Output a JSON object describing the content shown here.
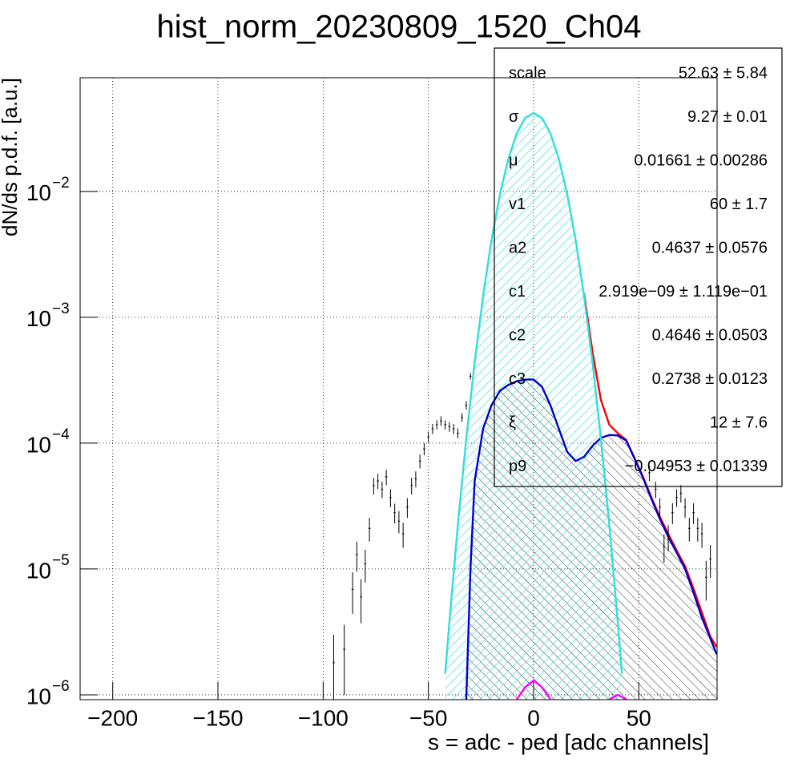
{
  "chart_data": {
    "type": "errorbar",
    "title": "hist_norm_20230809_1520_Ch04",
    "x_label": "s = adc - ped [adc channels]",
    "y_label": "dN/ds p.d.f. [a.u.]",
    "xlim": [
      -215.5,
      87.2
    ],
    "ylim": [
      9.15e-07,
      0.08
    ],
    "log_y": true,
    "grid": true,
    "xticks": [
      {
        "value": -200,
        "label": "−200"
      },
      {
        "value": -150,
        "label": "−150"
      },
      {
        "value": -100,
        "label": "−100"
      },
      {
        "value": -50,
        "label": "−50"
      },
      0,
      50
    ],
    "yticks": [
      {
        "value": 1e-06,
        "label": "10",
        "exponent": "−6"
      },
      {
        "value": 1e-05,
        "label": "10",
        "exponent": "−5"
      },
      {
        "value": 0.0001,
        "label": "10",
        "exponent": "−4"
      },
      {
        "value": 0.001,
        "label": "10",
        "exponent": "−3"
      },
      {
        "value": 0.01,
        "label": "10",
        "exponent": "−2"
      }
    ],
    "series": [
      {
        "kind": "area",
        "color": "#0000cc",
        "fill": "hatch-black",
        "x": [
          -32,
          -30,
          -28,
          -24,
          -20,
          -16,
          -12,
          -8,
          -4,
          0,
          4,
          8,
          12,
          16,
          20,
          24,
          28,
          32,
          36,
          40,
          44,
          48,
          52,
          56,
          60,
          64,
          68,
          72,
          76,
          80,
          84,
          87
        ],
        "values": [
          9.2e-07,
          1e-05,
          5e-05,
          0.00013,
          0.0002,
          0.00026,
          0.00029,
          0.00031,
          0.00032,
          0.00032,
          0.00028,
          0.0002,
          0.00013,
          8.5e-05,
          7.2e-05,
          7.8e-05,
          9.5e-05,
          0.00011,
          0.000116,
          0.000115,
          0.000105,
          7.5e-05,
          5.3e-05,
          3.6e-05,
          2.5e-05,
          1.8e-05,
          1.35e-05,
          1e-05,
          6.5e-06,
          4.1e-06,
          2.8e-06,
          2.1e-06
        ]
      },
      {
        "kind": "area",
        "color": "#33dddd",
        "fill": "hatch-cyan",
        "x": [
          -42,
          -40,
          -36,
          -32,
          -28,
          -24,
          -20,
          -16,
          -12,
          -8,
          -4,
          0,
          4,
          8,
          12,
          16,
          20,
          24,
          28,
          32,
          36,
          40,
          42
        ],
        "values": [
          1.47e-06,
          3.8e-06,
          2.23e-05,
          0.0001085,
          0.000439,
          0.00147,
          0.0041,
          0.00947,
          0.01817,
          0.0289,
          0.0383,
          0.042,
          0.0383,
          0.0289,
          0.01817,
          0.00947,
          0.0041,
          0.00147,
          0.000439,
          0.0001085,
          2.23e-05,
          3.8e-06,
          1.47e-06
        ]
      },
      {
        "kind": "line",
        "color": "#ff0000",
        "x": [
          24,
          28,
          32,
          36,
          40,
          44,
          48,
          52,
          56,
          60,
          64,
          68,
          72,
          76,
          80,
          84,
          87
        ],
        "values": [
          0.00155,
          0.00053,
          0.00022,
          0.00014,
          0.00012,
          0.000106,
          7.6e-05,
          5.4e-05,
          3.7e-05,
          2.6e-05,
          1.9e-05,
          1.4e-05,
          1.05e-05,
          7e-06,
          4.5e-06,
          2.9e-06,
          2.4e-06
        ]
      },
      {
        "kind": "line",
        "color": "#ff00ff",
        "x": [
          -8,
          -4,
          0,
          4,
          8,
          20,
          36,
          40,
          44
        ],
        "values": [
          9.2e-07,
          1.15e-06,
          1.3e-06,
          1.15e-06,
          9.2e-07,
          null,
          9.2e-07,
          1e-06,
          9.2e-07
        ]
      },
      {
        "kind": "points",
        "color": "#000000",
        "x": [
          -95,
          -90,
          -86,
          -84,
          -82,
          -80,
          -78,
          -76,
          -74,
          -72,
          -70,
          -68,
          -66,
          -64,
          -62,
          -60,
          -58,
          -56,
          -54,
          -52,
          -50,
          -48,
          -46,
          -44,
          -42,
          -40,
          -38,
          -36,
          -34,
          -32,
          -30,
          55,
          58,
          60,
          62,
          64,
          66,
          68,
          70,
          72,
          74,
          76,
          78,
          80,
          82,
          84
        ],
        "values": [
          1.8e-06,
          2.3e-06,
          6.9e-06,
          1.3e-05,
          6e-06,
          1.1e-05,
          2.1e-05,
          4.6e-05,
          5e-05,
          4.3e-05,
          5.4e-05,
          3.7e-05,
          2.8e-05,
          2.4e-05,
          1.9e-05,
          3.1e-05,
          4.6e-05,
          5.2e-05,
          7.2e-05,
          9e-05,
          0.000112,
          0.00013,
          0.00014,
          0.00015,
          0.00014,
          0.000135,
          0.00013,
          0.00012,
          0.00016,
          0.0002,
          0.00034,
          5.8e-05,
          4.3e-05,
          3.1e-05,
          1.5e-05,
          1.8e-05,
          2.8e-05,
          3.7e-05,
          4e-05,
          3.1e-05,
          2.1e-05,
          2.8e-05,
          2.1e-05,
          1.9e-05,
          8.6e-06,
          1.2e-05
        ],
        "errors": [
          1.2e-06,
          1.3e-06,
          2.5e-06,
          3.5e-06,
          2.3e-06,
          3.2e-06,
          4.5e-06,
          7e-06,
          7e-06,
          6.5e-06,
          7.5e-06,
          6e-06,
          5e-06,
          4.8e-06,
          4.3e-06,
          5.5e-06,
          7e-06,
          7.5e-06,
          9e-06,
          1e-05,
          1.1e-05,
          1.2e-05,
          1.2e-05,
          1.3e-05,
          1.2e-05,
          1.2e-05,
          1.2e-05,
          1.1e-05,
          1.3e-05,
          1.5e-05,
          2e-05,
          8e-06,
          6.5e-06,
          5.5e-06,
          3.8e-06,
          4.2e-06,
          5.3e-06,
          6e-06,
          6.3e-06,
          5.5e-06,
          4.5e-06,
          5.3e-06,
          4.5e-06,
          4.3e-06,
          3e-06,
          3.5e-06
        ]
      }
    ],
    "stats": {
      "rows": [
        {
          "name": "scale",
          "value": "52.63 ± 5.84"
        },
        {
          "name": "σ",
          "value": "9.27 ± 0.01"
        },
        {
          "name": "μ",
          "value": "0.01661 ± 0.00286"
        },
        {
          "name": "v1",
          "value": "60 ± 1.7"
        },
        {
          "name": "a2",
          "value": "0.4637 ± 0.0576"
        },
        {
          "name": "c1",
          "value": "2.919e−09 ± 1.119e−01"
        },
        {
          "name": "c2",
          "value": "0.4646 ± 0.0503"
        },
        {
          "name": "c3",
          "value": "0.2738 ± 0.0123"
        },
        {
          "name": "ξ",
          "value": "12 ± 7.6"
        },
        {
          "name": "p9",
          "value": "−0.04953 ± 0.01339"
        }
      ]
    }
  }
}
